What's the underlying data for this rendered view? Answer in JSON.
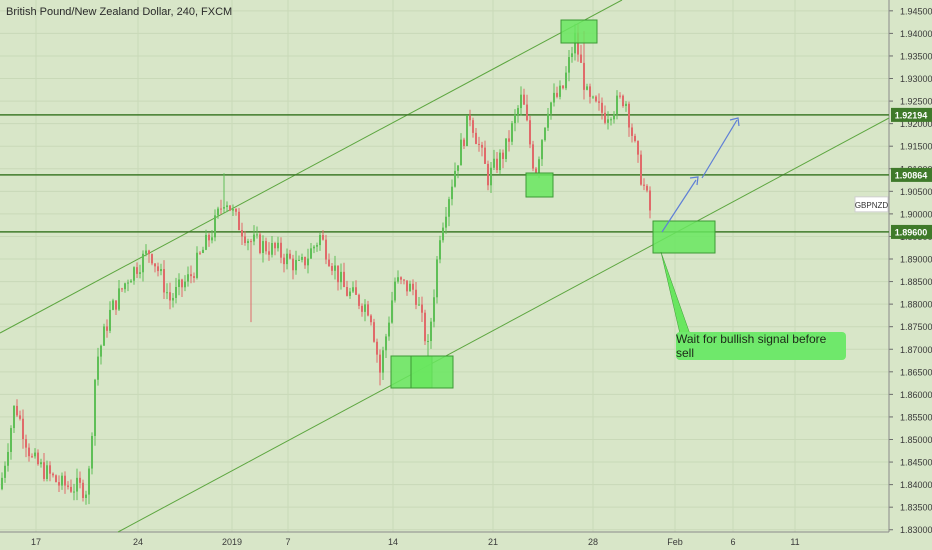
{
  "header": {
    "title": "British Pound/New Zealand Dollar, 240, FXCM"
  },
  "colors": {
    "background": "#d8e6c8",
    "grid": "#c9d9b8",
    "up_candle": "#5fbf57",
    "down_candle": "#e06a6a",
    "level_line": "#3f7a2a",
    "channel_line": "#5da640",
    "zone_fill": "#69e65f",
    "zone_stroke": "#3c9a34",
    "projection": "#5f7fd6",
    "level_label_bg": "#3f7a2a",
    "symbol_label_bg": "#ffffff"
  },
  "annotation": {
    "text": "Wait for bullish signal before sell"
  },
  "chart_data": {
    "type": "candlestick",
    "title": "British Pound/New Zealand Dollar, 240, FXCM",
    "symbol": "GBPNZD",
    "y_ticks": [
      "1.83000",
      "1.83500",
      "1.84000",
      "1.84500",
      "1.85000",
      "1.85500",
      "1.86000",
      "1.86500",
      "1.87000",
      "1.87500",
      "1.88000",
      "1.88500",
      "1.89000",
      "1.89500",
      "1.90000",
      "1.90500",
      "1.91000",
      "1.91500",
      "1.92000",
      "1.92500",
      "1.93000",
      "1.93500",
      "1.94000",
      "1.94500"
    ],
    "ylim": [
      1.8295,
      1.9474
    ],
    "x_ticks": [
      "17",
      "24",
      "2019",
      "7",
      "14",
      "21",
      "28",
      "Feb",
      "6",
      "11"
    ],
    "horizontal_levels": [
      {
        "label": "1.92194",
        "value": 1.92194
      },
      {
        "label": "1.90864",
        "value": 1.90864
      },
      {
        "label": "1.89600",
        "value": 1.896
      }
    ],
    "symbol_price": 1.902,
    "grid": true,
    "series_shape": [
      {
        "t": 0,
        "price": 1.839
      },
      {
        "t": 15,
        "price": 1.858
      },
      {
        "t": 32,
        "price": 1.8455
      },
      {
        "t": 60,
        "price": 1.84
      },
      {
        "t": 88,
        "price": 1.839
      },
      {
        "t": 96,
        "price": 1.867
      },
      {
        "t": 110,
        "price": 1.878
      },
      {
        "t": 128,
        "price": 1.886
      },
      {
        "t": 150,
        "price": 1.892
      },
      {
        "t": 170,
        "price": 1.881
      },
      {
        "t": 190,
        "price": 1.886
      },
      {
        "t": 212,
        "price": 1.896
      },
      {
        "t": 225,
        "price": 1.904
      },
      {
        "t": 235,
        "price": 1.899
      },
      {
        "t": 250,
        "price": 1.894
      },
      {
        "t": 275,
        "price": 1.892
      },
      {
        "t": 300,
        "price": 1.888
      },
      {
        "t": 320,
        "price": 1.895
      },
      {
        "t": 345,
        "price": 1.883
      },
      {
        "t": 370,
        "price": 1.879
      },
      {
        "t": 380,
        "price": 1.865
      },
      {
        "t": 395,
        "price": 1.885
      },
      {
        "t": 415,
        "price": 1.883
      },
      {
        "t": 428,
        "price": 1.87
      },
      {
        "t": 440,
        "price": 1.896
      },
      {
        "t": 455,
        "price": 1.91
      },
      {
        "t": 470,
        "price": 1.922
      },
      {
        "t": 488,
        "price": 1.908
      },
      {
        "t": 505,
        "price": 1.914
      },
      {
        "t": 522,
        "price": 1.926
      },
      {
        "t": 535,
        "price": 1.909
      },
      {
        "t": 548,
        "price": 1.924
      },
      {
        "t": 562,
        "price": 1.927
      },
      {
        "t": 575,
        "price": 1.939
      },
      {
        "t": 588,
        "price": 1.925
      },
      {
        "t": 605,
        "price": 1.922
      },
      {
        "t": 625,
        "price": 1.926
      },
      {
        "t": 638,
        "price": 1.911
      },
      {
        "t": 652,
        "price": 1.899
      }
    ]
  }
}
